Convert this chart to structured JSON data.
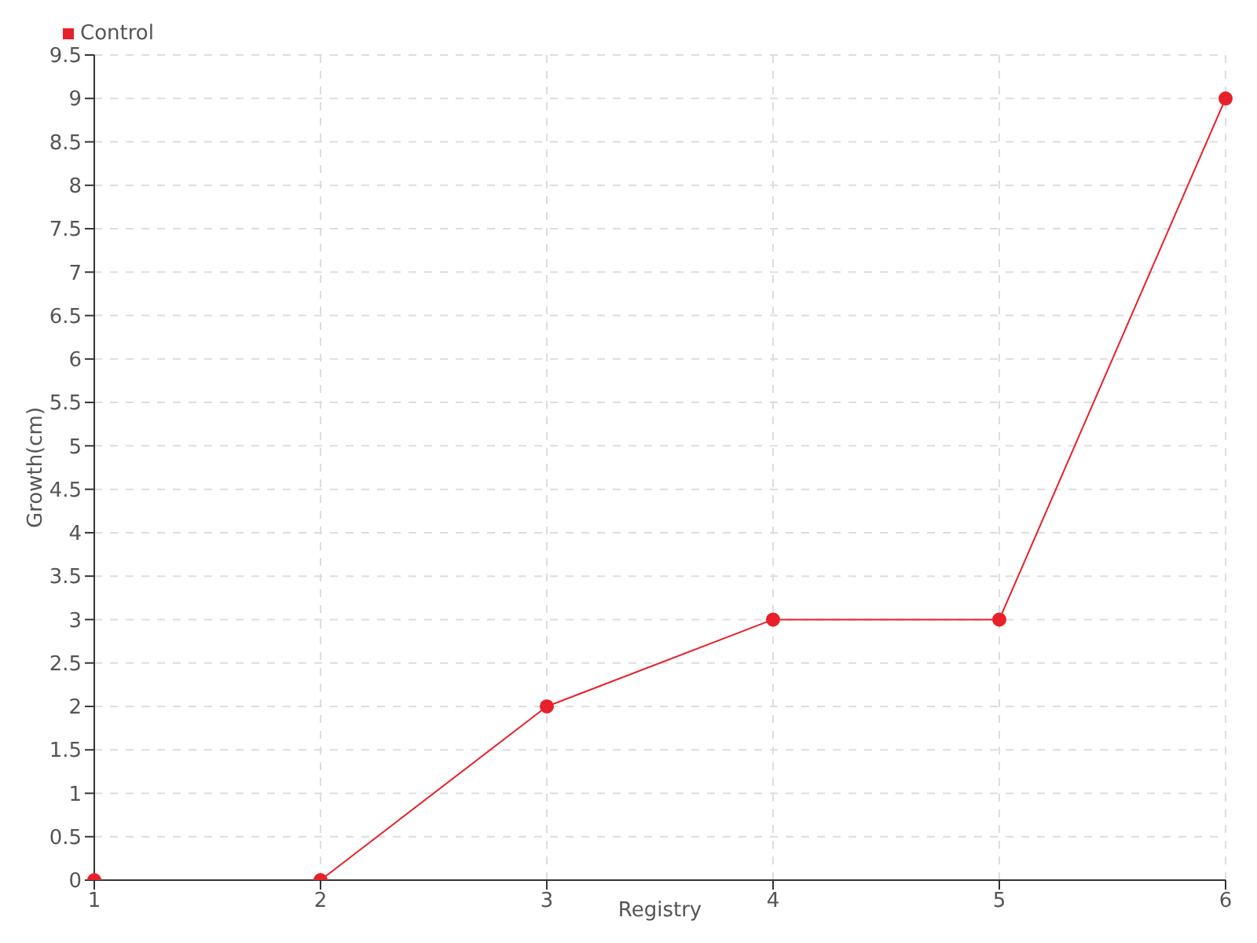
{
  "chart_data": {
    "type": "line",
    "xlabel": "Registry",
    "ylabel": "Growth(cm)",
    "categories": [
      "1",
      "2",
      "3",
      "4",
      "5",
      "6"
    ],
    "series": [
      {
        "name": "Control",
        "color": "#e8202a",
        "values": [
          0,
          0,
          2,
          3,
          3,
          9
        ]
      }
    ],
    "ylim": [
      0,
      9.5
    ],
    "yticks": [
      0,
      0.5,
      1,
      1.5,
      2,
      2.5,
      3,
      3.5,
      4,
      4.5,
      5,
      5.5,
      6,
      6.5,
      7,
      7.5,
      8,
      8.5,
      9,
      9.5
    ],
    "grid": true,
    "legend": "top left",
    "marker": "circle",
    "line_style": "solid"
  }
}
